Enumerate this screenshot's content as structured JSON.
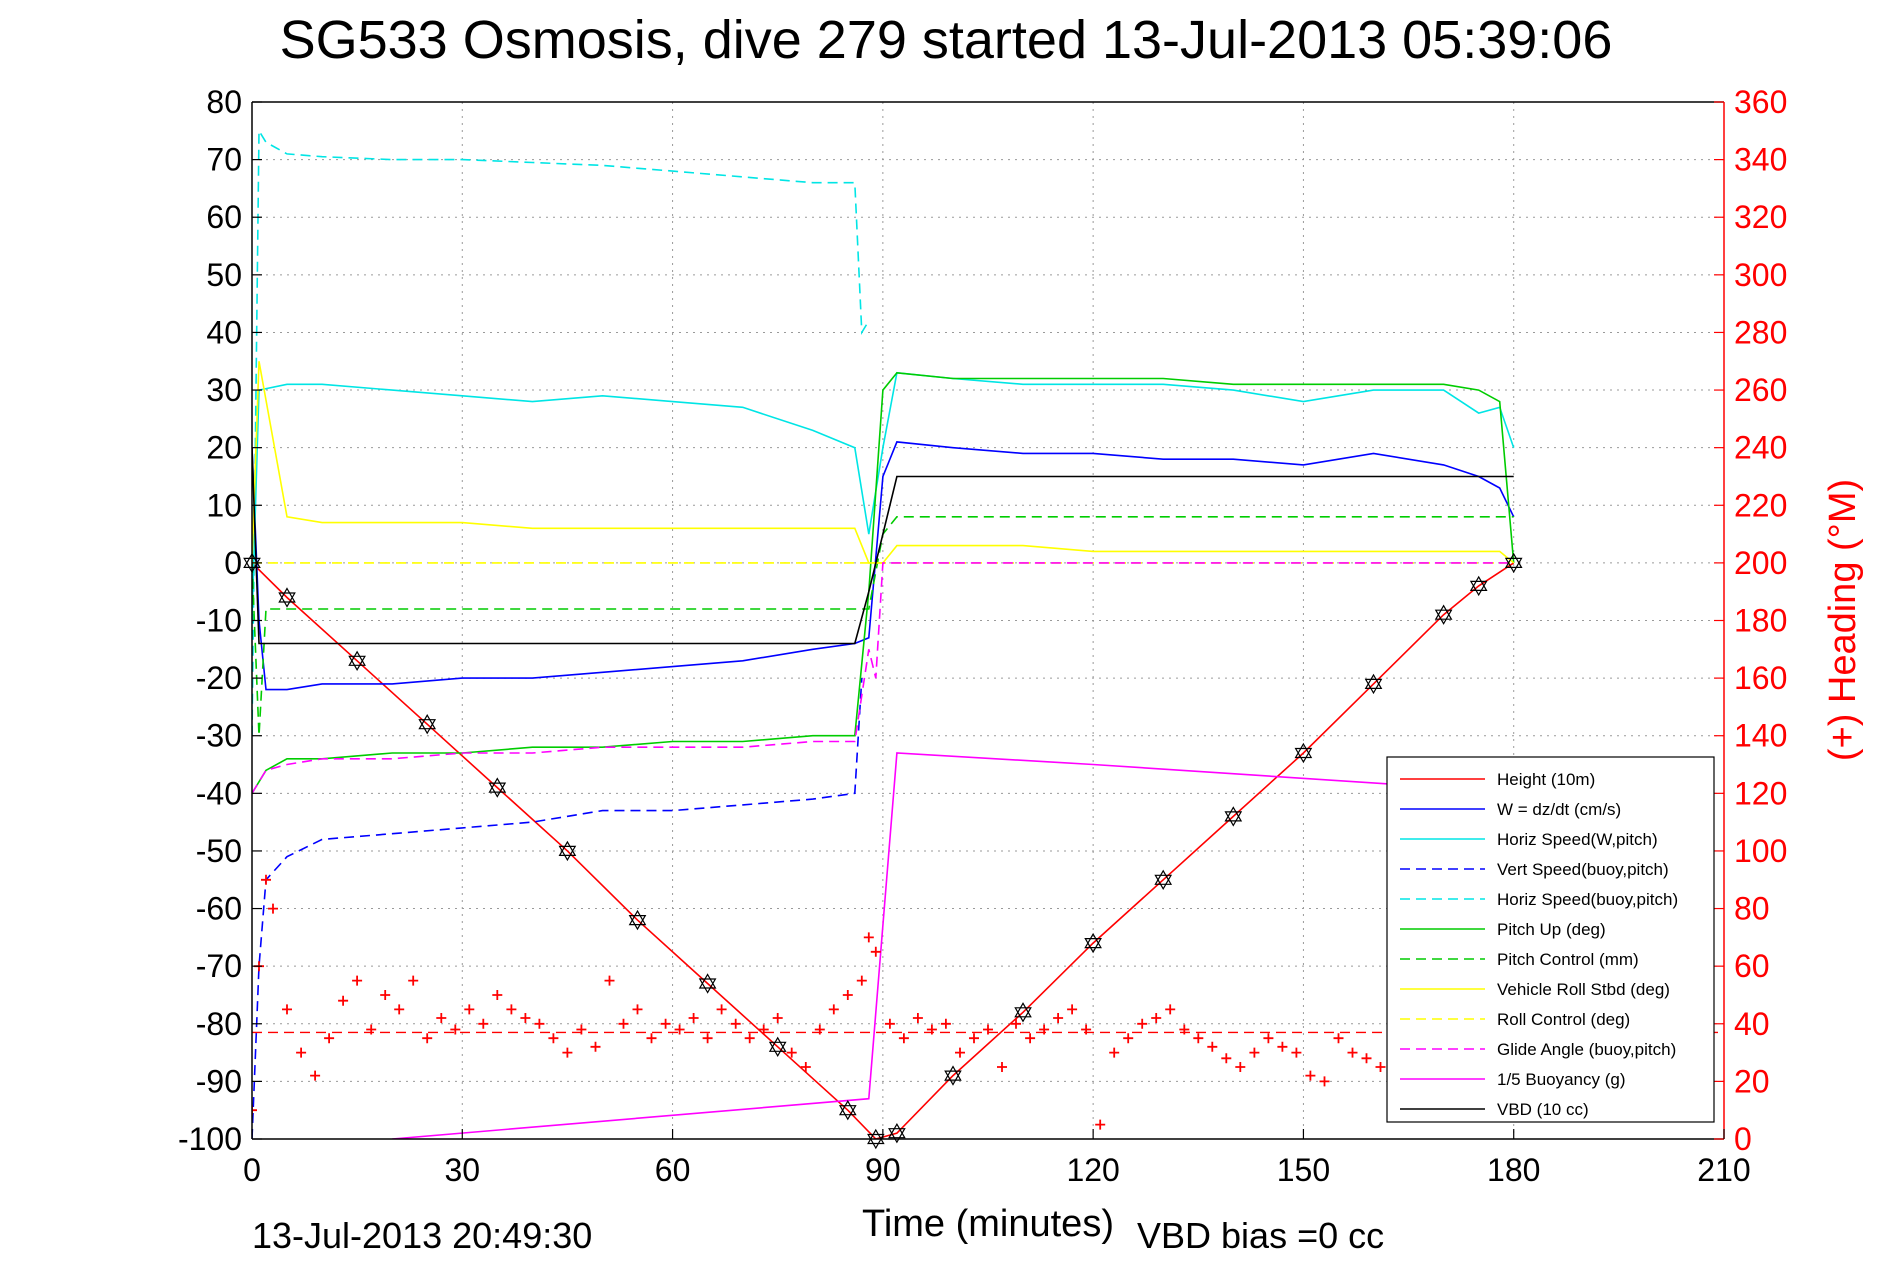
{
  "title": "SG533 Osmosis, dive 279 started 13-Jul-2013 05:39:06",
  "footer": {
    "timestamp": "13-Jul-2013 20:49:30",
    "vbd_bias": "VBD bias =0 cc"
  },
  "chart_data": {
    "type": "line",
    "xlabel": "Time (minutes)",
    "ylabel_left": "",
    "ylabel_right": "(+) Heading (°M)",
    "xlim": [
      0,
      210
    ],
    "ylim_left": [
      -100,
      80
    ],
    "ylim_right": [
      0,
      360
    ],
    "xticks": [
      "0",
      "30",
      "60",
      "90",
      "120",
      "150",
      "180",
      "210"
    ],
    "yticks_left": [
      "80",
      "70",
      "60",
      "50",
      "40",
      "30",
      "20",
      "10",
      "0",
      "-10",
      "-20",
      "-30",
      "-40",
      "-50",
      "-60",
      "-70",
      "-80",
      "-90",
      "-100"
    ],
    "yticks_right": [
      "360",
      "340",
      "320",
      "300",
      "280",
      "260",
      "240",
      "220",
      "200",
      "180",
      "160",
      "140",
      "120",
      "100",
      "80",
      "60",
      "40",
      "20",
      "0"
    ],
    "grid": true,
    "legend_position": "bottom-right",
    "series": [
      {
        "name": "Height (10m)",
        "color": "#ff0000",
        "style": "solid",
        "markers": "hexagram-black",
        "x": [
          0,
          5,
          15,
          25,
          35,
          45,
          55,
          65,
          75,
          85,
          89,
          92,
          100,
          110,
          120,
          130,
          140,
          150,
          160,
          170,
          175,
          180
        ],
        "y": [
          0,
          -6,
          -17,
          -28,
          -39,
          -50,
          -62,
          -73,
          -84,
          -95,
          -100,
          -99,
          -89,
          -78,
          -66,
          -55,
          -44,
          -33,
          -21,
          -9,
          -4,
          0
        ]
      },
      {
        "name": "W = dz/dt (cm/s)",
        "color": "#0000ff",
        "style": "solid",
        "x": [
          0,
          1,
          2,
          5,
          10,
          20,
          30,
          40,
          50,
          60,
          70,
          80,
          86,
          88,
          90,
          92,
          100,
          110,
          120,
          130,
          140,
          150,
          160,
          170,
          175,
          178,
          180
        ],
        "y": [
          20,
          -10,
          -22,
          -22,
          -21,
          -21,
          -20,
          -20,
          -19,
          -18,
          -17,
          -15,
          -14,
          -13,
          15,
          21,
          20,
          19,
          19,
          18,
          18,
          17,
          19,
          17,
          15,
          13,
          8
        ]
      },
      {
        "name": "Horiz Speed(W,pitch)",
        "color": "#00e5e5",
        "style": "solid",
        "x": [
          0,
          1,
          5,
          10,
          20,
          30,
          40,
          50,
          60,
          70,
          80,
          86,
          88,
          90,
          92,
          100,
          110,
          120,
          130,
          140,
          150,
          160,
          170,
          175,
          178,
          180
        ],
        "y": [
          -10,
          30,
          31,
          31,
          30,
          29,
          28,
          29,
          28,
          27,
          23,
          20,
          5,
          20,
          33,
          32,
          31,
          31,
          31,
          30,
          28,
          30,
          30,
          26,
          27,
          20
        ]
      },
      {
        "name": "Vert Speed(buoy,pitch)",
        "color": "#0000ff",
        "style": "dashed",
        "x": [
          0,
          1,
          2,
          5,
          10,
          20,
          30,
          40,
          50,
          60,
          70,
          80,
          86,
          87
        ],
        "y": [
          -100,
          -70,
          -55,
          -51,
          -48,
          -47,
          -46,
          -45,
          -43,
          -43,
          -42,
          -41,
          -40,
          -20
        ]
      },
      {
        "name": "Horiz Speed(buoy,pitch)",
        "color": "#00e5e5",
        "style": "dashed",
        "x": [
          0,
          1,
          2,
          5,
          10,
          20,
          30,
          40,
          50,
          60,
          70,
          80,
          86,
          87,
          88
        ],
        "y": [
          -30,
          75,
          73,
          71,
          70.5,
          70,
          70,
          69.5,
          69,
          68,
          67,
          66,
          66,
          40,
          42
        ]
      },
      {
        "name": "Pitch Up (deg)",
        "color": "#00cc00",
        "style": "solid",
        "x": [
          0,
          1,
          2,
          5,
          10,
          20,
          30,
          40,
          50,
          60,
          70,
          80,
          86,
          88,
          90,
          92,
          100,
          110,
          120,
          130,
          140,
          150,
          160,
          170,
          175,
          178,
          180
        ],
        "y": [
          -40,
          -38,
          -36,
          -34,
          -34,
          -33,
          -33,
          -32,
          -32,
          -31,
          -31,
          -30,
          -30,
          -5,
          30,
          33,
          32,
          32,
          32,
          32,
          31,
          31,
          31,
          31,
          30,
          28,
          0
        ]
      },
      {
        "name": "Pitch Control (mm)",
        "color": "#00cc00",
        "style": "dashed",
        "x": [
          0,
          1,
          2,
          88,
          90,
          92,
          180
        ],
        "y": [
          0,
          -30,
          -8,
          -8,
          5,
          8,
          8
        ]
      },
      {
        "name": "Vehicle Roll Stbd (deg)",
        "color": "#ffff00",
        "style": "solid",
        "x": [
          0,
          1,
          5,
          10,
          20,
          30,
          40,
          50,
          60,
          70,
          80,
          86,
          88,
          90,
          92,
          100,
          110,
          120,
          130,
          140,
          150,
          160,
          170,
          175,
          178,
          180
        ],
        "y": [
          0,
          35,
          8,
          7,
          7,
          7,
          6,
          6,
          6,
          6,
          6,
          6,
          0,
          0,
          3,
          3,
          3,
          2,
          2,
          2,
          2,
          2,
          2,
          2,
          2,
          0
        ]
      },
      {
        "name": "Roll Control (deg)",
        "color": "#ffff00",
        "style": "dashed",
        "x": [
          0,
          90,
          180
        ],
        "y": [
          0,
          0,
          0
        ]
      },
      {
        "name": "Glide Angle (buoy,pitch)",
        "color": "#ff00ff",
        "style": "dashed",
        "x": [
          0,
          1,
          2,
          5,
          10,
          20,
          30,
          40,
          50,
          60,
          70,
          80,
          86,
          88,
          89,
          90,
          180
        ],
        "y": [
          -40,
          -38,
          -36,
          -35,
          -34,
          -34,
          -33,
          -33,
          -32,
          -32,
          -32,
          -31,
          -31,
          -15,
          -20,
          0,
          0
        ]
      },
      {
        "name": "1/5 Buoyancy (g)",
        "color": "#ff00ff",
        "style": "solid",
        "x": [
          20,
          88,
          92,
          120,
          170
        ],
        "y": [
          -100,
          -93,
          -33,
          -35,
          -39
        ]
      },
      {
        "name": "VBD (10 cc)",
        "color": "#000000",
        "style": "solid",
        "x": [
          0,
          1,
          2,
          86,
          88,
          90,
          92,
          180
        ],
        "y": [
          20,
          -14,
          -14,
          -14,
          -5,
          5,
          15,
          15
        ]
      }
    ],
    "heading": {
      "name": "(+) Heading (°M)",
      "color": "#ff0000",
      "marker": "+",
      "axis": "right",
      "reference_line_deg": 37,
      "x": [
        0,
        1,
        2,
        3,
        5,
        7,
        9,
        11,
        13,
        15,
        17,
        19,
        21,
        23,
        25,
        27,
        29,
        31,
        33,
        35,
        37,
        39,
        41,
        43,
        45,
        47,
        49,
        51,
        53,
        55,
        57,
        59,
        61,
        63,
        65,
        67,
        69,
        71,
        73,
        75,
        77,
        79,
        81,
        83,
        85,
        87,
        88,
        89,
        91,
        93,
        95,
        97,
        99,
        101,
        103,
        105,
        107,
        109,
        111,
        113,
        115,
        117,
        119,
        121,
        123,
        125,
        127,
        129,
        131,
        133,
        135,
        137,
        139,
        141,
        143,
        145,
        147,
        149,
        151,
        153,
        155,
        157,
        159,
        161
      ],
      "y": [
        10,
        60,
        90,
        80,
        45,
        30,
        22,
        35,
        48,
        55,
        38,
        50,
        45,
        55,
        35,
        42,
        38,
        45,
        40,
        50,
        45,
        42,
        40,
        35,
        30,
        38,
        32,
        55,
        40,
        45,
        35,
        40,
        38,
        42,
        35,
        45,
        40,
        35,
        38,
        42,
        30,
        25,
        38,
        45,
        50,
        55,
        70,
        65,
        40,
        35,
        42,
        38,
        40,
        30,
        35,
        38,
        25,
        40,
        35,
        38,
        42,
        45,
        38,
        5,
        30,
        35,
        40,
        42,
        45,
        38,
        35,
        32,
        28,
        25,
        30,
        35,
        32,
        30,
        22,
        20,
        35,
        30,
        28,
        25
      ]
    }
  }
}
